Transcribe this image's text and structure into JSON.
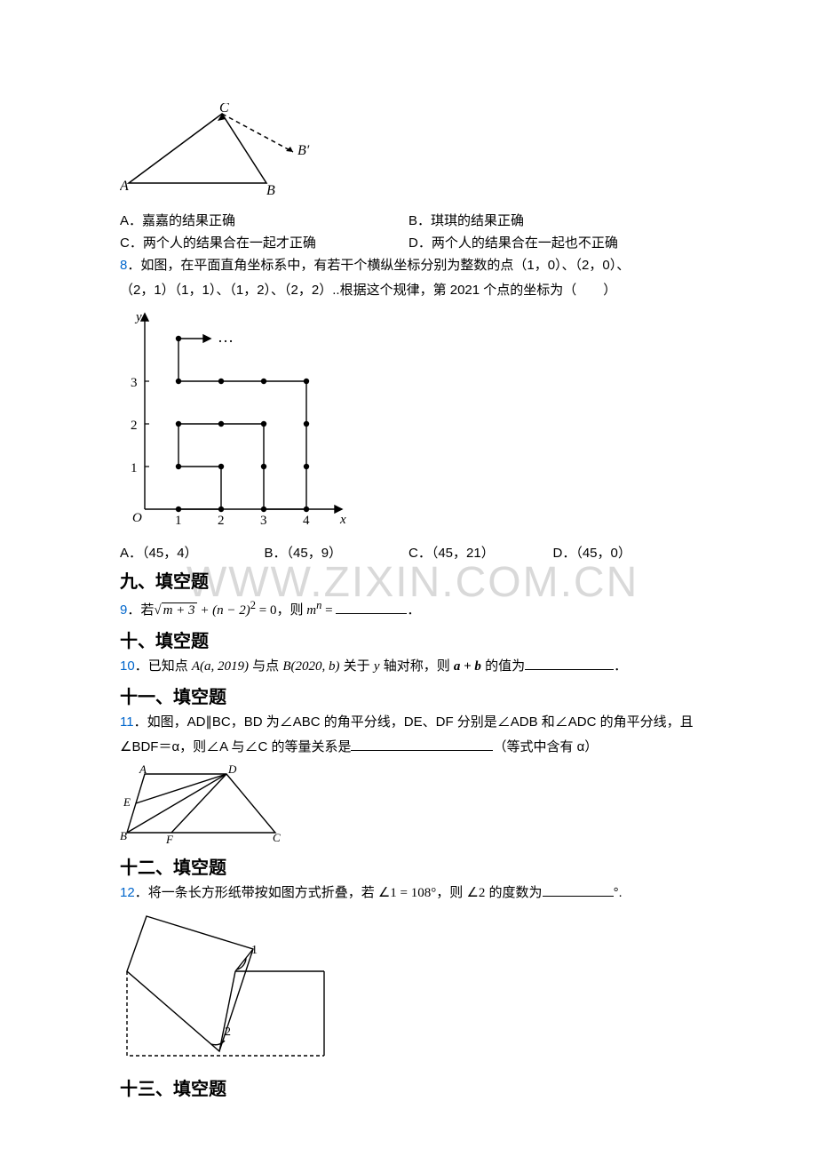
{
  "watermark": "WWW.ZIXIN.COM.CN",
  "triangle": {
    "labels": {
      "A": "A",
      "B": "B",
      "C": "C",
      "Bp": "B′"
    },
    "stroke": "#000000"
  },
  "q7": {
    "optA": "A．嘉嘉的结果正确",
    "optB": "B．琪琪的结果正确",
    "optC": "C．两个人的结果合在一起才正确",
    "optD": "D．两个人的结果合在一起也不正确"
  },
  "q8": {
    "num": "8",
    "text1": "．如图，在平面直角坐标系中，有若干个横纵坐标分别为整数的点（1，0）、（2，0）、",
    "text2": "（2，1）（1，1）、（1，2）、（2，2）..根据这个规律，第 2021 个点的坐标为（　　）",
    "optA": "A．（45，4）",
    "optB": "B．（45，9）",
    "optC": "C．（45，21）",
    "optD": "D．（45，0）",
    "axes": {
      "xlabel": "x",
      "ylabel": "y",
      "origin": "O",
      "xticks": [
        "1",
        "2",
        "3",
        "4"
      ],
      "yticks": [
        "1",
        "2",
        "3"
      ],
      "dots": "…",
      "stroke": "#000000",
      "spiral_points": [
        [
          1,
          0
        ],
        [
          2,
          0
        ],
        [
          2,
          1
        ],
        [
          1,
          1
        ],
        [
          1,
          2
        ],
        [
          2,
          2
        ],
        [
          3,
          2
        ],
        [
          3,
          1
        ],
        [
          3,
          0
        ],
        [
          4,
          0
        ],
        [
          4,
          1
        ],
        [
          4,
          2
        ],
        [
          4,
          3
        ],
        [
          3,
          3
        ],
        [
          2,
          3
        ],
        [
          1,
          3
        ],
        [
          1,
          4
        ]
      ],
      "arrow_point": [
        1,
        4
      ]
    }
  },
  "sec9": {
    "title": "九、填空题"
  },
  "q9": {
    "num": "9",
    "pre": "．若",
    "expr_radicand": "m + 3",
    "expr_plus": " + (n − 2)",
    "expr_sq": "2",
    "expr_eq": " = 0，则 ",
    "mn": "m",
    "mn_sup": "n",
    "eq2": " = ",
    "tail": "．",
    "blank_w": 80
  },
  "sec10": {
    "title": "十、填空题"
  },
  "q10": {
    "num": "10",
    "t1": "．已知点 ",
    "A_expr": "A(a, 2019)",
    "t2": " 与点 ",
    "B_expr": "B(2020, b)",
    "t3": " 关于 ",
    "yaxis": "y",
    "t4": " 轴对称，则 ",
    "ab": "a + b",
    "t5": " 的值为",
    "tail": "．",
    "blank_w": 100
  },
  "sec11": {
    "title": "十一、填空题"
  },
  "q11": {
    "num": "11",
    "l1": "．如图，AD∥BC，BD 为∠ABC 的角平分线，DE、DF 分别是∠ADB 和∠ADC 的角平分线，且",
    "l2_a": "∠BDF＝α，则∠A 与∠C 的等量关系是",
    "l2_b": "（等式中含有 α）",
    "blank_w": 160,
    "trap": {
      "A": "A",
      "B": "B",
      "C": "C",
      "D": "D",
      "E": "E",
      "F": "F",
      "stroke": "#000000"
    }
  },
  "sec12": {
    "title": "十二、填空题"
  },
  "q12": {
    "num": "12",
    "t1": "．将一条长方形纸带按如图方式折叠，若 ",
    "ang1": "∠1 = 108°",
    "t2": "，则 ",
    "ang2": "∠2",
    "t3": " 的度数为",
    "tail": "°.",
    "blank_w": 80,
    "fold": {
      "label1": "1",
      "label2": "2",
      "stroke": "#000000",
      "dash": "4,3"
    }
  },
  "sec13": {
    "title": "十三、填空题"
  }
}
